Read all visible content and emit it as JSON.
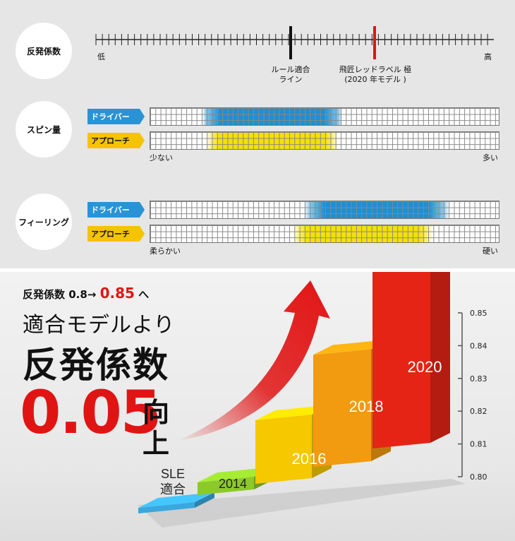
{
  "rebound": {
    "label": "反発係数",
    "low": "低",
    "high": "高",
    "rule_line": [
      "ルール適合",
      "ライン"
    ],
    "product_line": [
      "飛匠レッドラベル 極",
      "(2020 年モデル )"
    ]
  },
  "spin": {
    "label": "スピン量",
    "driver_tag": "ドライバー",
    "approach_tag": "アプローチ",
    "low": "少ない",
    "high": "多い"
  },
  "feeling": {
    "label": "フィーリング",
    "driver_tag": "ドライバー",
    "approach_tag": "アプローチ",
    "low": "柔らかい",
    "high": "硬い"
  },
  "promo": {
    "line1_prefix": "反発係数 0.8→ ",
    "line1_value": "0.85",
    "line1_suffix": " へ",
    "line2": "適合モデルより",
    "line3": "反発係数",
    "big_number": "0.05",
    "big_suffix_1": "向",
    "big_suffix_2": "上"
  },
  "chart_data": {
    "type": "bar",
    "categories": [
      "SLE 適合",
      "2014",
      "2016",
      "2018",
      "2020"
    ],
    "values": [
      0.8,
      0.805,
      0.815,
      0.83,
      0.85
    ],
    "y_ticks": [
      "0.80",
      "0.81",
      "0.82",
      "0.83",
      "0.84",
      "0.85"
    ],
    "ylim": [
      0.8,
      0.85
    ],
    "colors": [
      "#3aa8dd",
      "#8cc92a",
      "#f5c800",
      "#f29a10",
      "#e52415"
    ],
    "cat_labels": {
      "sle_1": "SLE",
      "sle_2": "適合",
      "y2014": "2014",
      "y2016": "2016",
      "y2018": "2018",
      "y2020": "2020"
    }
  }
}
